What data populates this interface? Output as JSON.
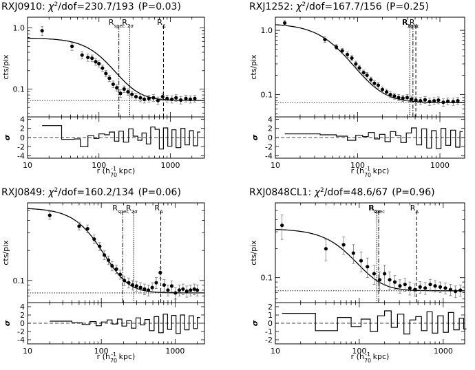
{
  "chart_data": [
    {
      "type": "scatter",
      "cluster": "RXJ0910",
      "chi2_dof": "230.7/193",
      "p_value": "(P=0.03)",
      "xlabel_main": "r (h",
      "xlabel_sub": "70",
      "xlabel_sup": "-1",
      "xlabel_tail": " kpc)",
      "ylabel": "cts/pix",
      "resid_label": "σ",
      "x_log": true,
      "y_log": true,
      "xlim": [
        10,
        3000
      ],
      "ylim": [
        0.035,
        1.5
      ],
      "x_ticks": [
        10,
        100,
        1000
      ],
      "y_ticks": [
        0.1,
        1.0
      ],
      "y_tick_labels": [
        "0.1",
        "1.0"
      ],
      "resid_ylim": [
        -4.5,
        4.5
      ],
      "resid_ticks": [
        4,
        2,
        0,
        -2,
        -4
      ],
      "background": 0.065,
      "model": {
        "S0": 0.62,
        "rc": 120,
        "beta": 0.65
      },
      "markers": [
        {
          "r": 190,
          "style": "dashdot",
          "label": "R",
          "sub": "spec"
        },
        {
          "r": 270,
          "style": "dotted",
          "label": "R",
          "sub": "2σ"
        },
        {
          "r": 800,
          "style": "dashed",
          "label": "R",
          "sub": "Δ"
        }
      ],
      "points": {
        "r": [
          16,
          42,
          58,
          70,
          80,
          90,
          100,
          112,
          125,
          140,
          158,
          178,
          200,
          225,
          255,
          290,
          330,
          380,
          430,
          500,
          580,
          670,
          780,
          900,
          1050,
          1200,
          1400,
          1650,
          1900,
          2200
        ],
        "value": [
          0.9,
          0.5,
          0.36,
          0.33,
          0.32,
          0.28,
          0.26,
          0.22,
          0.18,
          0.15,
          0.12,
          0.105,
          0.085,
          0.1,
          0.09,
          0.082,
          0.075,
          0.072,
          0.068,
          0.07,
          0.072,
          0.065,
          0.075,
          0.07,
          0.068,
          0.072,
          0.066,
          0.07,
          0.068,
          0.07
        ],
        "err": [
          0.15,
          0.07,
          0.05,
          0.045,
          0.04,
          0.035,
          0.03,
          0.025,
          0.02,
          0.018,
          0.015,
          0.013,
          0.012,
          0.012,
          0.011,
          0.01,
          0.01,
          0.01,
          0.009,
          0.009,
          0.009,
          0.009,
          0.01,
          0.009,
          0.009,
          0.009,
          0.009,
          0.009,
          0.009,
          0.009
        ]
      },
      "residuals": {
        "r": [
          16,
          30,
          45,
          55,
          70,
          85,
          100,
          120,
          140,
          165,
          190,
          220,
          260,
          300,
          350,
          400,
          460,
          530,
          610,
          700,
          800,
          920,
          1050,
          1200,
          1400,
          1600,
          1850,
          2100,
          2400
        ],
        "sigma": [
          2.6,
          -0.4,
          -0.3,
          -2.0,
          0.4,
          -0.2,
          0.8,
          0.6,
          1.2,
          -0.8,
          1.4,
          -1.0,
          1.9,
          0.3,
          -0.6,
          1.0,
          -1.4,
          2.3,
          1.8,
          -2.5,
          2.1,
          -1.9,
          1.7,
          -2.2,
          2.0,
          -1.6,
          1.5,
          -1.8,
          1.2
        ]
      }
    },
    {
      "type": "scatter",
      "cluster": "RXJ1252",
      "chi2_dof": "167.7/156",
      "p_value": "(P=0.25)",
      "xlabel_main": "r (h",
      "xlabel_sub": "70",
      "xlabel_sup": "-1",
      "xlabel_tail": " kpc)",
      "ylabel": "cts/pix",
      "resid_label": "σ",
      "x_log": true,
      "y_log": true,
      "xlim": [
        10,
        2000
      ],
      "ylim": [
        0.045,
        1.6
      ],
      "x_ticks": [
        10,
        100,
        1000
      ],
      "y_ticks": [
        0.1,
        1.0
      ],
      "y_tick_labels": [
        "0.1",
        "1.0"
      ],
      "resid_ylim": [
        -4.5,
        4.5
      ],
      "resid_ticks": [
        4,
        2,
        0,
        -2,
        -4
      ],
      "background": 0.075,
      "model": {
        "S0": 1.2,
        "rc": 55,
        "beta": 0.62
      },
      "markers": [
        {
          "r": 430,
          "style": "dotted",
          "label": "R",
          "sub": "2σ"
        },
        {
          "r": 470,
          "style": "dashdot",
          "label": "R",
          "sub": "spec"
        },
        {
          "r": 510,
          "style": "dashed",
          "label": "R",
          "sub": "Δ"
        }
      ],
      "points": {
        "r": [
          13,
          40,
          55,
          65,
          75,
          85,
          95,
          105,
          118,
          130,
          145,
          160,
          178,
          200,
          225,
          250,
          280,
          315,
          355,
          400,
          450,
          510,
          580,
          660,
          750,
          850,
          960,
          1100,
          1250,
          1450,
          1650
        ],
        "value": [
          1.3,
          0.72,
          0.55,
          0.48,
          0.42,
          0.37,
          0.3,
          0.26,
          0.22,
          0.2,
          0.17,
          0.15,
          0.14,
          0.12,
          0.11,
          0.1,
          0.095,
          0.09,
          0.088,
          0.09,
          0.085,
          0.082,
          0.08,
          0.083,
          0.078,
          0.08,
          0.082,
          0.076,
          0.079,
          0.078,
          0.08
        ],
        "err": [
          0.12,
          0.07,
          0.05,
          0.045,
          0.04,
          0.035,
          0.03,
          0.025,
          0.02,
          0.02,
          0.017,
          0.015,
          0.014,
          0.012,
          0.011,
          0.01,
          0.01,
          0.01,
          0.01,
          0.01,
          0.01,
          0.01,
          0.01,
          0.01,
          0.01,
          0.01,
          0.01,
          0.01,
          0.01,
          0.01,
          0.01
        ]
      },
      "residuals": {
        "r": [
          13,
          35,
          55,
          75,
          95,
          115,
          135,
          160,
          185,
          215,
          250,
          290,
          335,
          390,
          450,
          520,
          600,
          690,
          790,
          900,
          1030,
          1180,
          1350,
          1550,
          1750
        ],
        "sigma": [
          0.8,
          0.6,
          0.3,
          -0.6,
          0.5,
          0.2,
          1.1,
          -0.3,
          0.7,
          -0.9,
          1.3,
          0.4,
          -1.1,
          1.0,
          2.1,
          -1.6,
          1.9,
          -2.3,
          1.5,
          -2.4,
          2.0,
          -1.7,
          1.6,
          -2.1,
          1.3
        ]
      }
    },
    {
      "type": "scatter",
      "cluster": "RXJ0849",
      "chi2_dof": "160.2/134",
      "p_value": "(P=0.06)",
      "xlabel_main": "r (h",
      "xlabel_sub": "70",
      "xlabel_sup": "-1",
      "xlabel_tail": " kpc)",
      "ylabel": "cts/pix",
      "resid_label": "σ",
      "x_log": true,
      "y_log": true,
      "xlim": [
        10,
        2500
      ],
      "ylim": [
        0.06,
        0.6
      ],
      "x_ticks": [
        10,
        100,
        1000
      ],
      "y_ticks": [
        0.1
      ],
      "y_tick_labels": [
        "0.1"
      ],
      "resid_ylim": [
        -5,
        5
      ],
      "resid_ticks": [
        4,
        2,
        0,
        -2,
        -4
      ],
      "background": 0.075,
      "model": {
        "S0": 0.46,
        "rc": 90,
        "beta": 0.7
      },
      "markers": [
        {
          "r": 195,
          "style": "dashdot",
          "label": "R",
          "sub": "spec"
        },
        {
          "r": 275,
          "style": "dotted",
          "label": "R",
          "sub": "2σ"
        },
        {
          "r": 640,
          "style": "dashed",
          "label": "R",
          "sub": "Δ"
        }
      ],
      "points": {
        "r": [
          20,
          50,
          65,
          80,
          95,
          110,
          125,
          140,
          160,
          180,
          205,
          235,
          265,
          300,
          340,
          385,
          435,
          490,
          555,
          630,
          710,
          800,
          900,
          1010,
          1140,
          1280,
          1440,
          1620,
          1820,
          2000
        ],
        "value": [
          0.45,
          0.35,
          0.33,
          0.26,
          0.22,
          0.18,
          0.16,
          0.14,
          0.13,
          0.115,
          0.1,
          0.095,
          0.09,
          0.088,
          0.085,
          0.082,
          0.08,
          0.085,
          0.095,
          0.12,
          0.09,
          0.08,
          0.088,
          0.075,
          0.08,
          0.082,
          0.078,
          0.08,
          0.082,
          0.08
        ],
        "err": [
          0.04,
          0.03,
          0.03,
          0.025,
          0.02,
          0.018,
          0.016,
          0.015,
          0.013,
          0.012,
          0.011,
          0.011,
          0.01,
          0.01,
          0.01,
          0.01,
          0.01,
          0.01,
          0.012,
          0.015,
          0.012,
          0.01,
          0.011,
          0.01,
          0.01,
          0.01,
          0.01,
          0.01,
          0.01,
          0.01
        ]
      },
      "residuals": {
        "r": [
          20,
          40,
          55,
          70,
          85,
          100,
          120,
          140,
          165,
          190,
          220,
          255,
          295,
          340,
          390,
          450,
          520,
          600,
          690,
          790,
          900,
          1030,
          1180,
          1350,
          1550,
          1780,
          2000
        ],
        "sigma": [
          0.5,
          0.1,
          -0.3,
          0.4,
          -0.6,
          0.3,
          0.8,
          -0.2,
          1.0,
          -0.7,
          0.6,
          -1.2,
          1.3,
          -0.4,
          0.9,
          -1.8,
          1.6,
          -2.3,
          2.2,
          -1.5,
          1.9,
          -2.5,
          2.0,
          -1.6,
          1.8,
          -1.3,
          1.4
        ]
      }
    },
    {
      "type": "scatter",
      "cluster": "RXJ0848CL1",
      "chi2_dof": "48.6/67",
      "p_value": "(P=0.96)",
      "xlabel_main": "r (h",
      "xlabel_sub": "70",
      "xlabel_sup": "-1",
      "xlabel_tail": " kpc)",
      "ylabel": "cts/pix",
      "resid_label": "σ",
      "x_log": true,
      "y_log": true,
      "xlim": [
        10,
        1800
      ],
      "ylim": [
        0.055,
        0.6
      ],
      "x_ticks": [
        10,
        100,
        1000
      ],
      "y_ticks": [
        0.1
      ],
      "y_tick_labels": [
        "0.1"
      ],
      "resid_ylim": [
        -2.5,
        2.5
      ],
      "resid_ticks": [
        2,
        1,
        0,
        -1,
        -2
      ],
      "background": 0.073,
      "model": {
        "S0": 0.25,
        "rc": 90,
        "beta": 0.75
      },
      "markers": [
        {
          "r": 162,
          "style": "dotted",
          "label": "R",
          "sub": "2σ"
        },
        {
          "r": 170,
          "style": "dashdot",
          "label": "R",
          "sub": "spec"
        },
        {
          "r": 480,
          "style": "dashed",
          "label": "R",
          "sub": "Δ"
        }
      ],
      "points": {
        "r": [
          12,
          40,
          65,
          85,
          105,
          125,
          150,
          175,
          200,
          230,
          265,
          305,
          350,
          400,
          460,
          530,
          610,
          700,
          800,
          920,
          1060,
          1220,
          1400,
          1600
        ],
        "value": [
          0.35,
          0.2,
          0.22,
          0.18,
          0.15,
          0.13,
          0.11,
          0.095,
          0.11,
          0.095,
          0.09,
          0.082,
          0.085,
          0.078,
          0.075,
          0.08,
          0.078,
          0.085,
          0.082,
          0.08,
          0.078,
          0.075,
          0.072,
          0.074
        ],
        "err": [
          0.1,
          0.05,
          0.045,
          0.04,
          0.035,
          0.03,
          0.025,
          0.02,
          0.025,
          0.02,
          0.015,
          0.013,
          0.013,
          0.012,
          0.011,
          0.011,
          0.011,
          0.011,
          0.011,
          0.01,
          0.01,
          0.01,
          0.01,
          0.01
        ]
      },
      "residuals": {
        "r": [
          12,
          30,
          55,
          80,
          105,
          135,
          165,
          200,
          240,
          285,
          340,
          400,
          470,
          550,
          640,
          740,
          860,
          1000,
          1150,
          1330,
          1550,
          1750
        ],
        "sigma": [
          1.2,
          -0.9,
          0.7,
          -0.4,
          0.5,
          -1.0,
          0.9,
          1.5,
          -0.5,
          1.1,
          -1.3,
          0.4,
          0.8,
          -0.9,
          1.4,
          -1.2,
          0.9,
          -1.1,
          1.3,
          -0.8,
          0.6,
          -0.7
        ]
      }
    }
  ]
}
